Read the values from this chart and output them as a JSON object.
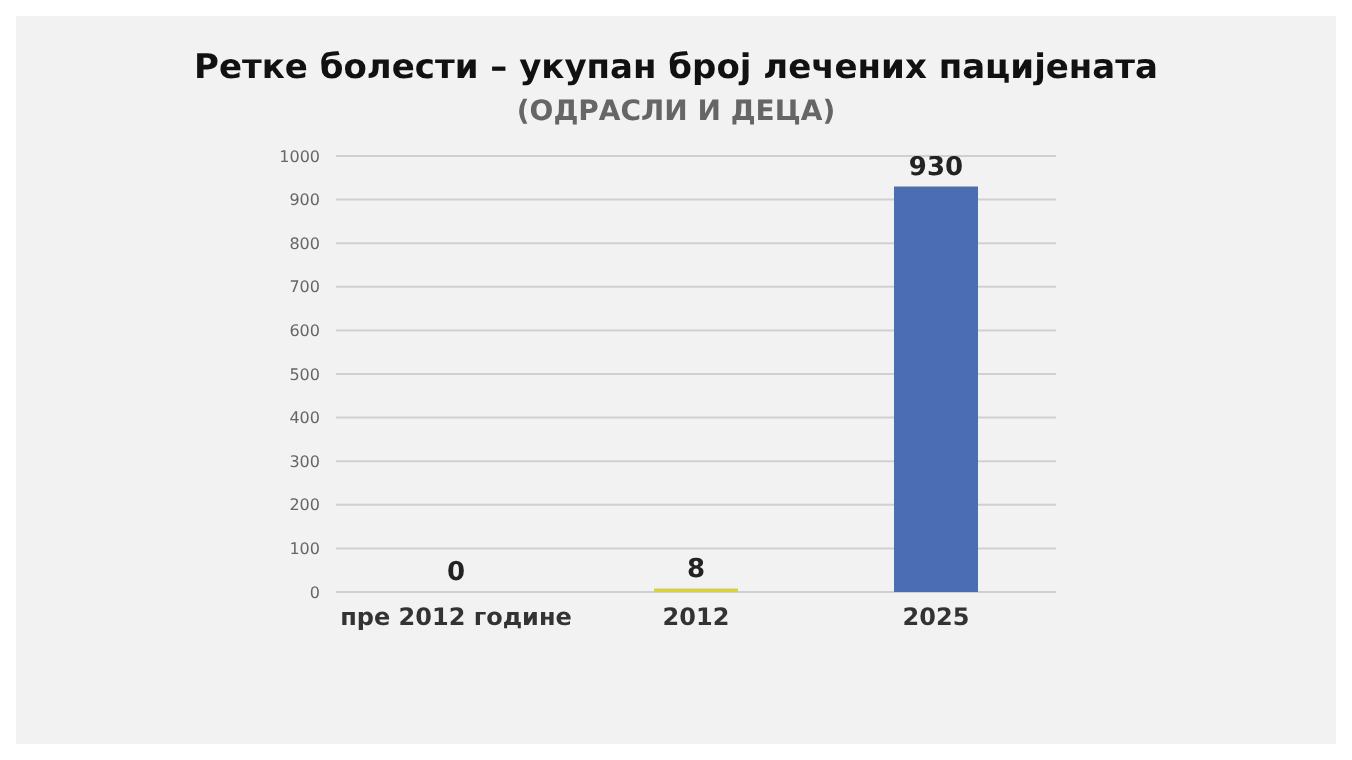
{
  "chart_data": {
    "type": "bar",
    "title": "Ретке болести – укупан број лечених пацијената",
    "subtitle": "(ОДРАСЛИ И ДЕЦА)",
    "categories": [
      "пре 2012 године",
      "2012",
      "2025"
    ],
    "values": [
      0,
      8,
      930
    ],
    "colors": [
      "#d9d334",
      "#d9d334",
      "#4a6db3"
    ],
    "ylim": [
      0,
      1000
    ],
    "yticks": [
      0,
      100,
      200,
      300,
      400,
      500,
      600,
      700,
      800,
      900,
      1000
    ],
    "grid": "y",
    "data_labels": true
  }
}
